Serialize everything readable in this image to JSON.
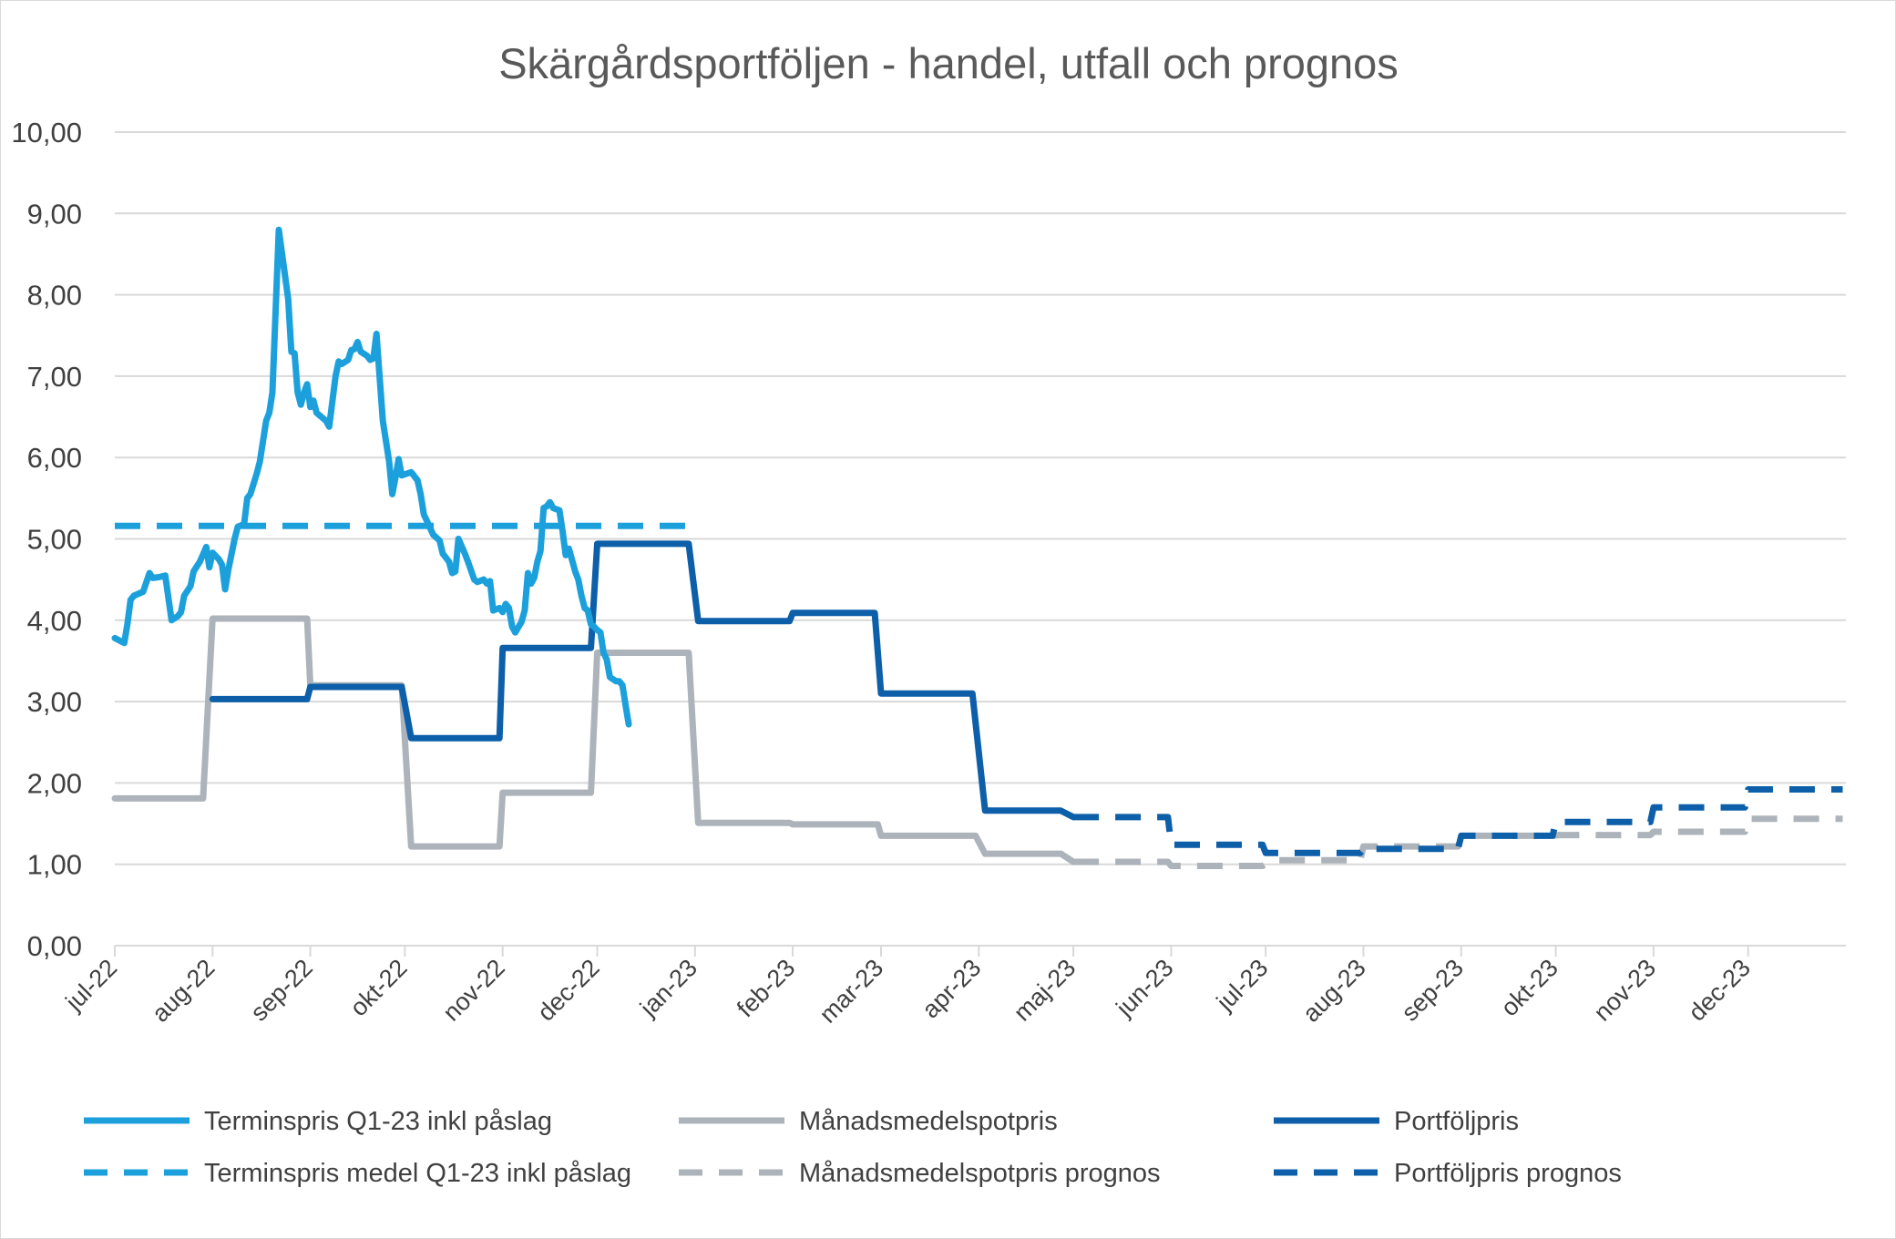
{
  "chart_data": {
    "type": "line",
    "title": "Skärgårdsportföljen - handel, utfall och prognos",
    "xlabel": "",
    "ylabel": "",
    "ylim": [
      0,
      10
    ],
    "y_ticks": [
      "0,00",
      "1,00",
      "2,00",
      "3,00",
      "4,00",
      "5,00",
      "6,00",
      "7,00",
      "8,00",
      "9,00",
      "10,00"
    ],
    "x_ticks": [
      "jul-22",
      "aug-22",
      "sep-22",
      "okt-22",
      "nov-22",
      "dec-22",
      "jan-23",
      "feb-23",
      "mar-23",
      "apr-23",
      "maj-23",
      "jun-23",
      "jul-23",
      "aug-23",
      "sep-23",
      "okt-23",
      "nov-23",
      "dec-23"
    ],
    "x_range": [
      "2022-07-01",
      "2023-12-31"
    ],
    "grid": "horizontal",
    "legend_position": "bottom",
    "series": [
      {
        "name": "Terminspris Q1-23 inkl påslag",
        "style": "solid",
        "color": "#1ca0dc",
        "points": [
          [
            "2022-07-01",
            3.78
          ],
          [
            "2022-07-04",
            3.72
          ],
          [
            "2022-07-05",
            3.95
          ],
          [
            "2022-07-06",
            4.25
          ],
          [
            "2022-07-07",
            4.3
          ],
          [
            "2022-07-10",
            4.35
          ],
          [
            "2022-07-12",
            4.58
          ],
          [
            "2022-07-13",
            4.52
          ],
          [
            "2022-07-15",
            4.53
          ],
          [
            "2022-07-17",
            4.55
          ],
          [
            "2022-07-19",
            4.0
          ],
          [
            "2022-07-21",
            4.05
          ],
          [
            "2022-07-22",
            4.1
          ],
          [
            "2022-07-23",
            4.3
          ],
          [
            "2022-07-25",
            4.42
          ],
          [
            "2022-07-26",
            4.6
          ],
          [
            "2022-07-28",
            4.72
          ],
          [
            "2022-07-30",
            4.9
          ],
          [
            "2022-07-31",
            4.65
          ],
          [
            "2022-08-01",
            4.83
          ],
          [
            "2022-08-03",
            4.75
          ],
          [
            "2022-08-04",
            4.68
          ],
          [
            "2022-08-05",
            4.38
          ],
          [
            "2022-08-06",
            4.62
          ],
          [
            "2022-08-08",
            5.0
          ],
          [
            "2022-08-09",
            5.15
          ],
          [
            "2022-08-11",
            5.18
          ],
          [
            "2022-08-12",
            5.5
          ],
          [
            "2022-08-13",
            5.55
          ],
          [
            "2022-08-15",
            5.8
          ],
          [
            "2022-08-16",
            5.95
          ],
          [
            "2022-08-18",
            6.45
          ],
          [
            "2022-08-19",
            6.55
          ],
          [
            "2022-08-20",
            6.8
          ],
          [
            "2022-08-22",
            8.8
          ],
          [
            "2022-08-25",
            7.95
          ],
          [
            "2022-08-26",
            7.3
          ],
          [
            "2022-08-27",
            7.28
          ],
          [
            "2022-08-28",
            6.8
          ],
          [
            "2022-08-29",
            6.65
          ],
          [
            "2022-08-30",
            6.8
          ],
          [
            "2022-08-31",
            6.9
          ],
          [
            "2022-09-01",
            6.62
          ],
          [
            "2022-09-02",
            6.7
          ],
          [
            "2022-09-03",
            6.55
          ],
          [
            "2022-09-06",
            6.45
          ],
          [
            "2022-09-07",
            6.38
          ],
          [
            "2022-09-09",
            7.0
          ],
          [
            "2022-09-10",
            7.18
          ],
          [
            "2022-09-11",
            7.15
          ],
          [
            "2022-09-13",
            7.2
          ],
          [
            "2022-09-14",
            7.32
          ],
          [
            "2022-09-15",
            7.33
          ],
          [
            "2022-09-16",
            7.42
          ],
          [
            "2022-09-17",
            7.3
          ],
          [
            "2022-09-19",
            7.25
          ],
          [
            "2022-09-20",
            7.2
          ],
          [
            "2022-09-21",
            7.22
          ],
          [
            "2022-09-22",
            7.52
          ],
          [
            "2022-09-24",
            6.45
          ],
          [
            "2022-09-26",
            5.95
          ],
          [
            "2022-09-27",
            5.55
          ],
          [
            "2022-09-28",
            5.75
          ],
          [
            "2022-09-29",
            5.98
          ],
          [
            "2022-09-30",
            5.78
          ],
          [
            "2022-10-03",
            5.82
          ],
          [
            "2022-10-05",
            5.72
          ],
          [
            "2022-10-06",
            5.55
          ],
          [
            "2022-10-07",
            5.3
          ],
          [
            "2022-10-08",
            5.22
          ],
          [
            "2022-10-10",
            5.05
          ],
          [
            "2022-10-12",
            4.98
          ],
          [
            "2022-10-13",
            4.82
          ],
          [
            "2022-10-15",
            4.72
          ],
          [
            "2022-10-16",
            4.58
          ],
          [
            "2022-10-17",
            4.6
          ],
          [
            "2022-10-18",
            5.0
          ],
          [
            "2022-10-20",
            4.82
          ],
          [
            "2022-10-21",
            4.72
          ],
          [
            "2022-10-23",
            4.5
          ],
          [
            "2022-10-24",
            4.47
          ],
          [
            "2022-10-26",
            4.5
          ],
          [
            "2022-10-27",
            4.45
          ],
          [
            "2022-10-28",
            4.48
          ],
          [
            "2022-10-29",
            4.12
          ],
          [
            "2022-10-31",
            4.15
          ],
          [
            "2022-11-01",
            4.1
          ],
          [
            "2022-11-02",
            4.2
          ],
          [
            "2022-11-03",
            4.15
          ],
          [
            "2022-11-04",
            3.92
          ],
          [
            "2022-11-05",
            3.85
          ],
          [
            "2022-11-07",
            3.98
          ],
          [
            "2022-11-08",
            4.12
          ],
          [
            "2022-11-09",
            4.58
          ],
          [
            "2022-11-10",
            4.45
          ],
          [
            "2022-11-11",
            4.52
          ],
          [
            "2022-11-12",
            4.72
          ],
          [
            "2022-11-13",
            4.85
          ],
          [
            "2022-11-14",
            5.38
          ],
          [
            "2022-11-15",
            5.4
          ],
          [
            "2022-11-16",
            5.45
          ],
          [
            "2022-11-17",
            5.38
          ],
          [
            "2022-11-19",
            5.35
          ],
          [
            "2022-11-20",
            5.1
          ],
          [
            "2022-11-21",
            4.8
          ],
          [
            "2022-11-22",
            4.88
          ],
          [
            "2022-11-24",
            4.6
          ],
          [
            "2022-11-25",
            4.5
          ],
          [
            "2022-11-26",
            4.3
          ],
          [
            "2022-11-27",
            4.15
          ],
          [
            "2022-11-28",
            4.12
          ],
          [
            "2022-11-29",
            3.95
          ],
          [
            "2022-11-30",
            3.92
          ],
          [
            "2022-12-01",
            3.88
          ],
          [
            "2022-12-02",
            3.85
          ],
          [
            "2022-12-03",
            3.6
          ],
          [
            "2022-12-04",
            3.52
          ],
          [
            "2022-12-05",
            3.3
          ],
          [
            "2022-12-07",
            3.25
          ],
          [
            "2022-12-08",
            3.25
          ],
          [
            "2022-12-09",
            3.2
          ],
          [
            "2022-12-10",
            2.95
          ],
          [
            "2022-12-11",
            2.72
          ]
        ]
      },
      {
        "name": "Terminspris medel Q1-23 inkl påslag",
        "style": "dashed",
        "color": "#1ca0dc",
        "points": [
          [
            "2022-07-01",
            5.16
          ],
          [
            "2022-12-31",
            5.16
          ]
        ]
      },
      {
        "name": "Månadsmedelspotpris",
        "style": "solid",
        "color": "#adb3ba",
        "points": [
          [
            "2022-07-01",
            1.81
          ],
          [
            "2022-07-29",
            1.81
          ],
          [
            "2022-08-01",
            4.02
          ],
          [
            "2022-08-31",
            4.02
          ],
          [
            "2022-09-01",
            3.2
          ],
          [
            "2022-09-30",
            3.2
          ],
          [
            "2022-10-03",
            1.22
          ],
          [
            "2022-10-31",
            1.22
          ],
          [
            "2022-11-01",
            1.88
          ],
          [
            "2022-11-29",
            1.88
          ],
          [
            "2022-12-01",
            3.6
          ],
          [
            "2022-12-30",
            3.6
          ],
          [
            "2023-01-02",
            1.51
          ],
          [
            "2023-01-31",
            1.51
          ],
          [
            "2023-02-01",
            1.49
          ],
          [
            "2023-02-28",
            1.49
          ],
          [
            "2023-03-01",
            1.35
          ],
          [
            "2023-03-31",
            1.35
          ],
          [
            "2023-04-03",
            1.13
          ],
          [
            "2023-04-27",
            1.13
          ],
          [
            "2023-05-01",
            1.03
          ]
        ]
      },
      {
        "name": "Månadsmedelspotpris prognos",
        "style": "dashed",
        "color": "#adb3ba",
        "points": [
          [
            "2023-05-01",
            1.03
          ],
          [
            "2023-05-31",
            1.03
          ],
          [
            "2023-06-01",
            0.98
          ],
          [
            "2023-06-30",
            0.98
          ],
          [
            "2023-07-03",
            1.05
          ],
          [
            "2023-07-31",
            1.05
          ],
          [
            "2023-08-01",
            1.22
          ],
          [
            "2023-08-31",
            1.22
          ],
          [
            "2023-09-01",
            1.35
          ],
          [
            "2023-09-30",
            1.35
          ],
          [
            "2023-10-02",
            1.36
          ],
          [
            "2023-10-31",
            1.36
          ],
          [
            "2023-11-01",
            1.4
          ],
          [
            "2023-11-30",
            1.4
          ],
          [
            "2023-12-01",
            1.56
          ],
          [
            "2023-12-31",
            1.56
          ]
        ]
      },
      {
        "name": "Portföljpris",
        "style": "solid",
        "color": "#0c5fa8",
        "points": [
          [
            "2022-08-01",
            3.03
          ],
          [
            "2022-08-31",
            3.03
          ],
          [
            "2022-09-01",
            3.18
          ],
          [
            "2022-09-30",
            3.18
          ],
          [
            "2022-10-03",
            2.55
          ],
          [
            "2022-10-31",
            2.55
          ],
          [
            "2022-11-01",
            3.66
          ],
          [
            "2022-11-29",
            3.66
          ],
          [
            "2022-12-01",
            4.94
          ],
          [
            "2022-12-30",
            4.94
          ],
          [
            "2023-01-02",
            3.99
          ],
          [
            "2023-01-31",
            3.99
          ],
          [
            "2023-02-01",
            4.09
          ],
          [
            "2023-02-27",
            4.09
          ],
          [
            "2023-03-01",
            3.1
          ],
          [
            "2023-03-30",
            3.1
          ],
          [
            "2023-04-03",
            1.66
          ],
          [
            "2023-04-27",
            1.66
          ],
          [
            "2023-05-01",
            1.58
          ]
        ]
      },
      {
        "name": "Portföljpris prognos",
        "style": "dashed",
        "color": "#0c5fa8",
        "points": [
          [
            "2023-05-01",
            1.58
          ],
          [
            "2023-05-31",
            1.58
          ],
          [
            "2023-06-01",
            1.24
          ],
          [
            "2023-06-30",
            1.24
          ],
          [
            "2023-07-01",
            1.14
          ],
          [
            "2023-07-31",
            1.14
          ],
          [
            "2023-08-01",
            1.19
          ],
          [
            "2023-08-31",
            1.19
          ],
          [
            "2023-09-01",
            1.35
          ],
          [
            "2023-09-30",
            1.35
          ],
          [
            "2023-10-01",
            1.52
          ],
          [
            "2023-10-31",
            1.52
          ],
          [
            "2023-11-01",
            1.7
          ],
          [
            "2023-11-30",
            1.7
          ],
          [
            "2023-12-01",
            1.92
          ],
          [
            "2023-12-31",
            1.92
          ]
        ]
      }
    ]
  }
}
